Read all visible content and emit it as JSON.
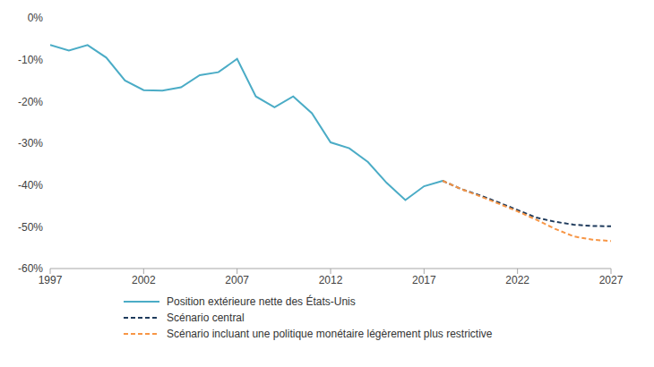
{
  "chart_data": {
    "type": "line",
    "x": [
      1997,
      1998,
      1999,
      2000,
      2001,
      2002,
      2003,
      2004,
      2005,
      2006,
      2007,
      2008,
      2009,
      2010,
      2011,
      2012,
      2013,
      2014,
      2015,
      2016,
      2017,
      2018,
      2019,
      2020,
      2021,
      2022,
      2023,
      2024,
      2025,
      2026,
      2027
    ],
    "series": [
      {
        "name": "Position extérieure nette des États-Unis",
        "color": "#4bacc6",
        "line_style": "solid",
        "values": [
          -6.5,
          -7.8,
          -6.5,
          -9.5,
          -15,
          -17.3,
          -17.4,
          -16.6,
          -13.7,
          -13,
          -9.8,
          -18.8,
          -21.4,
          -18.8,
          -22.8,
          -29.8,
          -31.2,
          -34.5,
          -39.5,
          -43.6,
          -40.3,
          -39,
          null,
          null,
          null,
          null,
          null,
          null,
          null,
          null,
          null
        ]
      },
      {
        "name": "Scénario central",
        "color": "#1f3b5c",
        "line_style": "dashed",
        "values": [
          null,
          null,
          null,
          null,
          null,
          null,
          null,
          null,
          null,
          null,
          null,
          null,
          null,
          null,
          null,
          null,
          null,
          null,
          null,
          null,
          null,
          -39,
          -41,
          -42.5,
          -44.2,
          -46,
          -47.8,
          -48.8,
          -49.5,
          -49.8,
          -49.9
        ]
      },
      {
        "name": "Scénario incluant une politique monétaire légèrement plus restrictive",
        "color": "#f79646",
        "line_style": "dashed",
        "values": [
          null,
          null,
          null,
          null,
          null,
          null,
          null,
          null,
          null,
          null,
          null,
          null,
          null,
          null,
          null,
          null,
          null,
          null,
          null,
          null,
          null,
          -39,
          -41,
          -42.7,
          -44.5,
          -46.3,
          -48.3,
          -50.5,
          -52.3,
          -53.1,
          -53.4
        ]
      }
    ],
    "xlim": [
      1997,
      2027
    ],
    "xticks": [
      1997,
      2002,
      2007,
      2012,
      2017,
      2022,
      2027
    ],
    "ylim": [
      -60,
      0
    ],
    "yticks": [
      {
        "value": -60,
        "label": "-60%"
      },
      {
        "value": -50,
        "label": "-50%"
      },
      {
        "value": -40,
        "label": "-40%"
      },
      {
        "value": -30,
        "label": "-30%"
      },
      {
        "value": -20,
        "label": "-20%"
      },
      {
        "value": -10,
        "label": "-10%"
      },
      {
        "value": 0,
        "label": "0%"
      }
    ],
    "grid": false,
    "legend": "bottom"
  }
}
